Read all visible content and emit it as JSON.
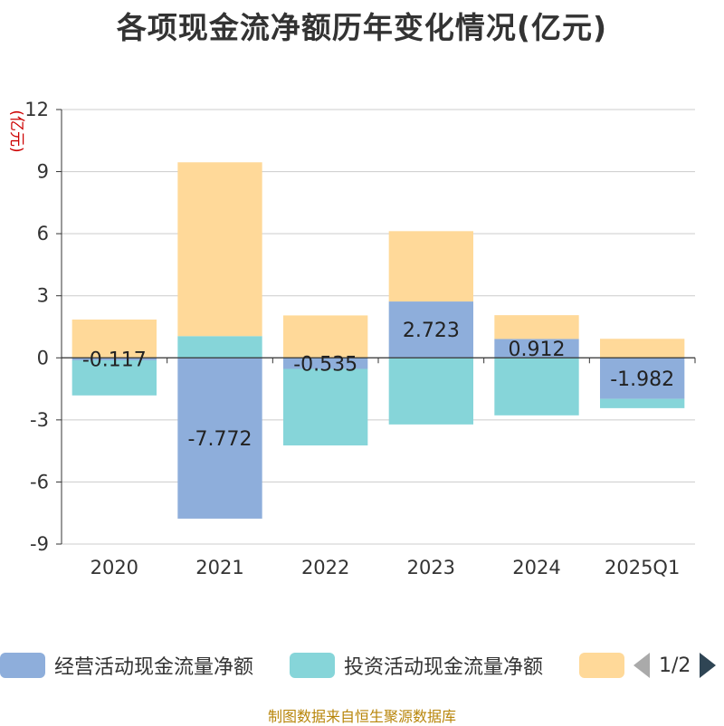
{
  "title": "各项现金流净额历年变化情况(亿元)",
  "source": "制图数据来自恒生聚源数据库",
  "chart_data": {
    "type": "bar",
    "stacked": true,
    "title": "各项现金流净额历年变化情况(亿元)",
    "ylabel": "(亿元)",
    "ylim": [
      -9,
      12
    ],
    "yticks": [
      -9,
      -6,
      -3,
      0,
      3,
      6,
      9,
      12
    ],
    "grid": true,
    "categories": [
      "2020",
      "2021",
      "2022",
      "2023",
      "2024",
      "2025Q1"
    ],
    "series": [
      {
        "name": "经营活动现金流量净额",
        "color": "#8eaedb",
        "values": [
          -0.117,
          -7.772,
          -0.535,
          2.723,
          0.912,
          -1.982
        ],
        "labels": [
          "-0.117",
          "-7.772",
          "-0.535",
          "2.723",
          "0.912",
          "-1.982"
        ]
      },
      {
        "name": "投资活动现金流量净额",
        "color": "#86d5d9",
        "values": [
          -1.7,
          1.05,
          -3.7,
          -3.22,
          -2.78,
          -0.45
        ]
      },
      {
        "name": "",
        "color": "#ffd999",
        "values": [
          1.85,
          8.4,
          2.05,
          3.4,
          1.15,
          0.92
        ]
      }
    ],
    "legend": {
      "position": "bottom",
      "page": "1/2"
    }
  }
}
